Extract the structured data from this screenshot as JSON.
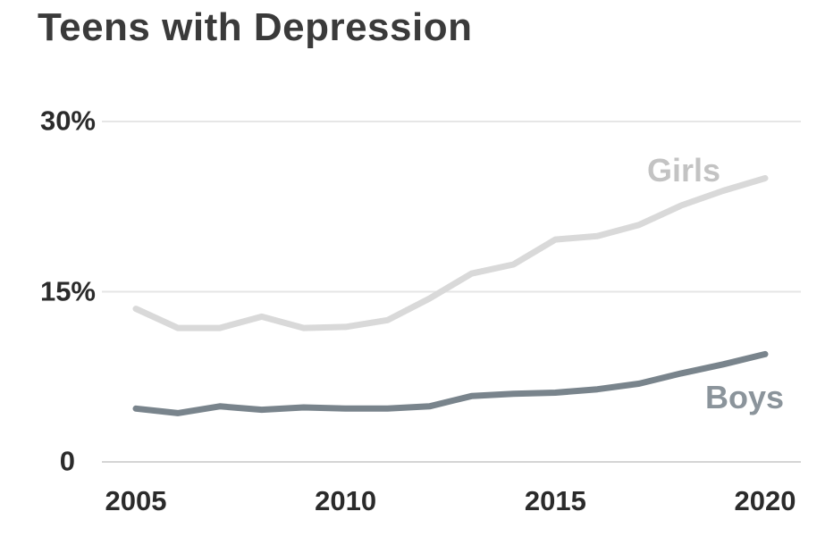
{
  "chart": {
    "title": "Teens with Depression"
  },
  "colors": {
    "background": "#ffffff",
    "title_text": "#3a3a3a",
    "tick_text": "#2b2b2b",
    "gridline": "#e6e6e6",
    "baseline": "#d5d5d5",
    "girls_line": "#d9d9d9",
    "girls_label": "#c3c3c3",
    "boys_line": "#79848c",
    "boys_label": "#8b949b"
  },
  "chart_data": {
    "type": "line",
    "title": "Teens with Depression",
    "xlabel": "",
    "ylabel": "",
    "x": [
      2005,
      2006,
      2007,
      2008,
      2009,
      2010,
      2011,
      2012,
      2013,
      2014,
      2015,
      2016,
      2017,
      2018,
      2019,
      2020
    ],
    "series": [
      {
        "name": "Girls",
        "color_key": "girls_line",
        "label_color_key": "girls_label",
        "values": [
          13.5,
          11.8,
          11.8,
          12.8,
          11.8,
          11.9,
          12.5,
          14.4,
          16.6,
          17.4,
          19.6,
          19.9,
          20.9,
          22.6,
          23.9,
          25.0
        ]
      },
      {
        "name": "Boys",
        "color_key": "boys_line",
        "label_color_key": "boys_label",
        "values": [
          4.7,
          4.3,
          4.9,
          4.6,
          4.8,
          4.7,
          4.7,
          4.9,
          5.8,
          6.0,
          6.1,
          6.4,
          6.9,
          7.8,
          8.6,
          9.5
        ]
      }
    ],
    "ylim": [
      0,
      30
    ],
    "xlim": [
      2005,
      2020
    ],
    "y_ticks": [
      {
        "value": 30,
        "label": "30%"
      },
      {
        "value": 15,
        "label": "15%"
      },
      {
        "value": 0,
        "label": "0"
      }
    ],
    "x_ticks": [
      {
        "value": 2005,
        "label": "2005"
      },
      {
        "value": 2010,
        "label": "2010"
      },
      {
        "value": 2015,
        "label": "2015"
      },
      {
        "value": 2020,
        "label": "2020"
      }
    ],
    "grid": "horizontal",
    "legend": "inline-labels"
  }
}
